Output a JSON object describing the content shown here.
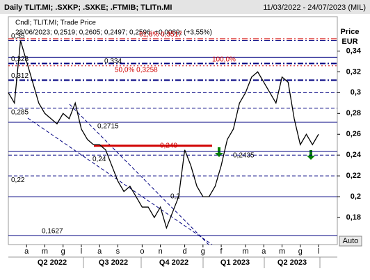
{
  "chart_data": {
    "type": "line",
    "title": "Daily TLIT.MI; .SXKP; .SXKE; .FTMIB; TLITn.MI",
    "date_range": "11/03/2022 - 24/07/2023 (MIL)",
    "legend_lines": [
      "Cndl; TLIT.MI; Trade Price",
      "28/06/2023; 0,2519; 0,2605; 0,2497; 0,2596; +0,0089; (+3,55%)"
    ],
    "y_axis_label": "Price",
    "y_axis_unit": "EUR",
    "categories": [
      null,
      null,
      null,
      "a",
      null,
      null,
      "m",
      null,
      null,
      "g",
      null,
      null,
      "l",
      null,
      null,
      "a",
      null,
      null,
      "s",
      null,
      null,
      null,
      "o",
      null,
      null,
      "n",
      null,
      null,
      null,
      "d",
      null,
      null,
      "g",
      null,
      null,
      "f",
      null,
      null,
      null,
      "m",
      null,
      null,
      "a",
      null,
      null,
      "m",
      null,
      null,
      "g",
      null,
      null,
      "l"
    ],
    "quarters": [
      "Q2 2022",
      "Q3 2022",
      "Q4 2022",
      "Q1 2023",
      "Q2 2023"
    ],
    "series": [
      {
        "name": "TLIT.MI",
        "color": "#000000",
        "values": [
          0.3,
          0.29,
          0.35,
          0.33,
          0.31,
          0.29,
          0.28,
          0.275,
          0.27,
          0.28,
          0.275,
          0.29,
          0.265,
          0.255,
          0.25,
          0.25,
          0.245,
          0.23,
          0.215,
          0.205,
          0.21,
          0.2,
          0.19,
          0.19,
          0.18,
          0.19,
          0.17,
          0.185,
          0.2,
          0.245,
          0.23,
          0.21,
          0.2,
          0.2,
          0.21,
          0.23,
          0.255,
          0.265,
          0.29,
          0.3,
          0.315,
          0.32,
          0.31,
          0.3,
          0.29,
          0.315,
          0.31,
          0.275,
          0.25,
          0.26,
          0.25,
          0.26
        ]
      }
    ],
    "ylim": [
      0.154,
      0.373
    ],
    "yticks": [
      {
        "value": 0.18,
        "label": "0,18"
      },
      {
        "value": 0.2,
        "label": "0,2"
      },
      {
        "value": 0.22,
        "label": "0,22"
      },
      {
        "value": 0.24,
        "label": "0,24"
      },
      {
        "value": 0.26,
        "label": "0,26"
      },
      {
        "value": 0.28,
        "label": "0,28"
      },
      {
        "value": 0.3,
        "label": "0,3"
      },
      {
        "value": 0.32,
        "label": "0,32"
      },
      {
        "value": 0.34,
        "label": "0,34"
      }
    ],
    "levels": [
      {
        "value": 0.3517,
        "label": "61,8% 0,3517",
        "color": "#d00000",
        "style": "dashdot"
      },
      {
        "value": 0.35,
        "label": "0,35",
        "color": "#000080",
        "style": "dashdot"
      },
      {
        "value": 0.334,
        "label": "0,334",
        "color": "#000080",
        "style": "solid"
      },
      {
        "value": 0.328,
        "label": "0,328",
        "color": "#000080",
        "style": "dashdot-bold"
      },
      {
        "value": 0.3258,
        "label": "50,0% 0,3258",
        "color": "#d00000",
        "style": "dotted"
      },
      {
        "value": 0.312,
        "label": "0,312",
        "color": "#000080",
        "style": "dashdot-bold"
      },
      {
        "value": 0.3,
        "color": "#000080",
        "style": "dash"
      },
      {
        "value": 0.285,
        "label": "0,285",
        "color": "#000080",
        "style": "dash"
      },
      {
        "value": 0.2715,
        "label": "0,2715",
        "color": "#000080",
        "style": "solid"
      },
      {
        "value": 0.249,
        "label": "0,249",
        "color": "#d00000",
        "style": "segment"
      },
      {
        "value": 0.2435,
        "label": "0,2435",
        "color": "#000080",
        "style": "solid"
      },
      {
        "value": 0.24,
        "label": "0,24",
        "color": "#000080",
        "style": "dash"
      },
      {
        "value": 0.22,
        "label": "0,22",
        "color": "#000080",
        "style": "dash"
      },
      {
        "value": 0.2,
        "label": "0,2",
        "color": "#000080",
        "style": "solid"
      },
      {
        "value": 0.1627,
        "label": "0,1627",
        "color": "#000080",
        "style": "solid"
      }
    ],
    "annotations": [
      "100,0%"
    ],
    "button": "Auto"
  }
}
